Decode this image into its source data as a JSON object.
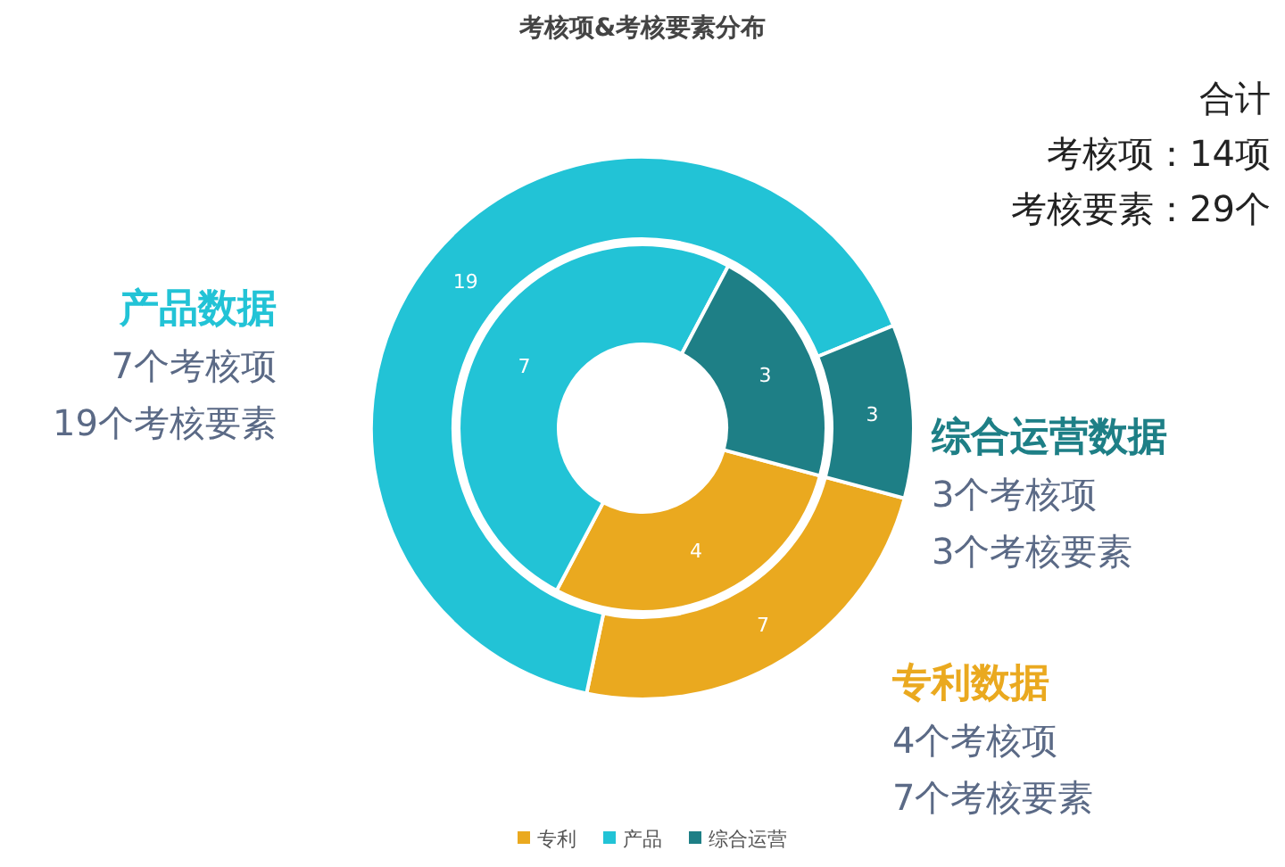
{
  "chart_data": {
    "type": "donut",
    "title": "考核项&考核要素分布",
    "categories": [
      "专利",
      "产品",
      "综合运营"
    ],
    "colors": [
      "#eaa91f",
      "#22c3d6",
      "#1e7f86"
    ],
    "series": [
      {
        "values": [
          4,
          7,
          3
        ]
      },
      {
        "values": [
          7,
          19,
          3
        ]
      }
    ],
    "data_labels": true,
    "legend": "bottom",
    "annotations": [
      "合计",
      "考核项：14项",
      "考核要素：29个",
      "专利数据",
      "4个考核项",
      "7个考核要素",
      "产品数据",
      "7个考核项",
      "19个考核要素",
      "综合运营数据",
      "3个考核项",
      "3个考核要素"
    ]
  }
}
